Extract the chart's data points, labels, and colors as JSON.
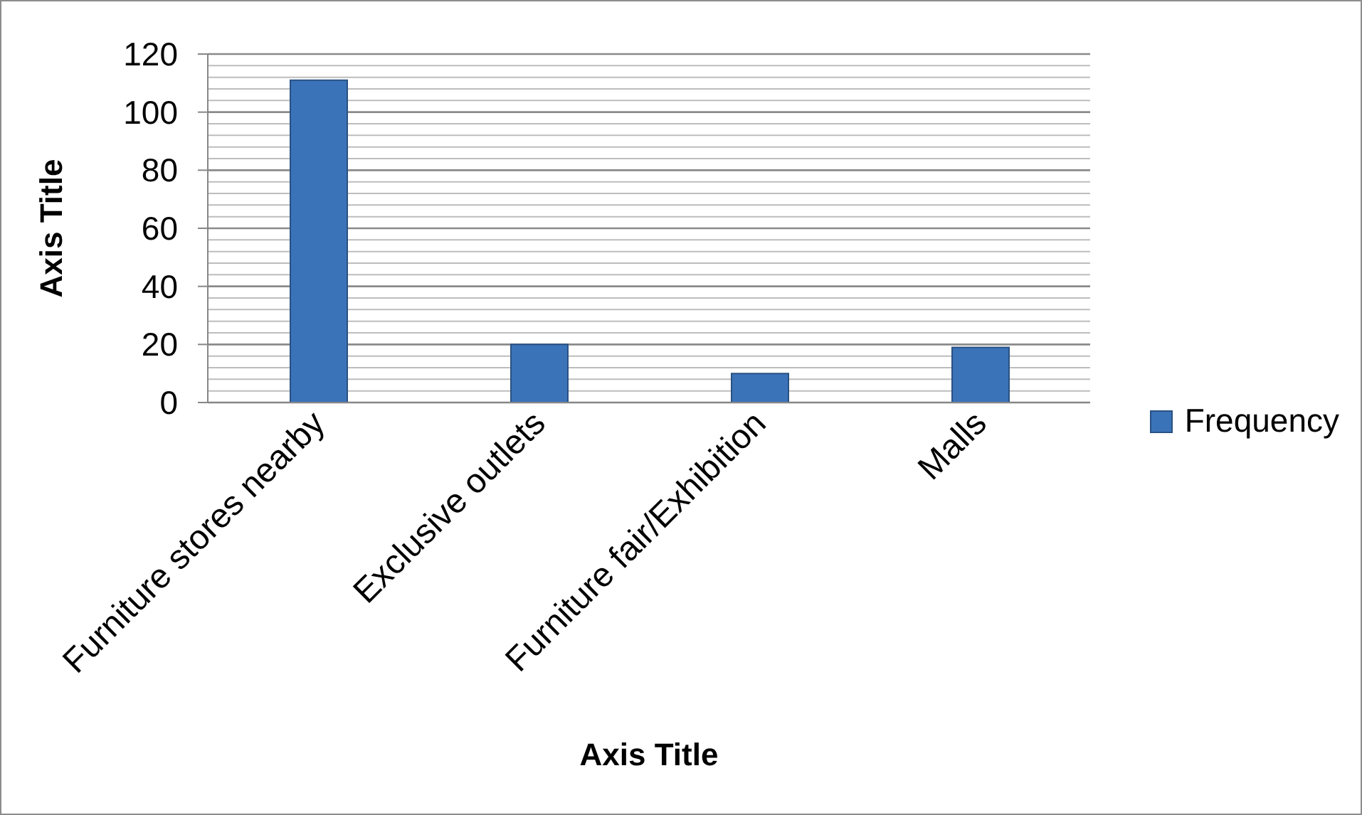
{
  "chart_data": {
    "type": "bar",
    "xlabel": "Axis Title",
    "ylabel": "Axis Title",
    "categories": [
      "Furniture stores nearby",
      "Exclusive outlets",
      "Furniture fair/Exhibition",
      "Malls"
    ],
    "series": [
      {
        "name": "Frequency",
        "color": "#3b73b9",
        "values": [
          111,
          20,
          10,
          19
        ]
      }
    ],
    "ylim": [
      0,
      120
    ],
    "yticks": [
      0,
      {
        "value": 4,
        "label": null
      },
      {
        "value": 8,
        "label": null
      },
      {
        "value": 12,
        "label": null
      },
      {
        "value": 16,
        "label": null
      },
      20,
      {
        "value": 24,
        "label": null
      },
      {
        "value": 28,
        "label": null
      },
      {
        "value": 32,
        "label": null
      },
      {
        "value": 36,
        "label": null
      },
      40,
      {
        "value": 44,
        "label": null
      },
      {
        "value": 48,
        "label": null
      },
      {
        "value": 52,
        "label": null
      },
      {
        "value": 56,
        "label": null
      },
      60,
      {
        "value": 64,
        "label": null
      },
      {
        "value": 68,
        "label": null
      },
      {
        "value": 72,
        "label": null
      },
      {
        "value": 76,
        "label": null
      },
      80,
      {
        "value": 84,
        "label": null
      },
      {
        "value": 88,
        "label": null
      },
      {
        "value": 92,
        "label": null
      },
      {
        "value": 96,
        "label": null
      },
      100,
      {
        "value": 104,
        "label": null
      },
      {
        "value": 108,
        "label": null
      },
      {
        "value": 112,
        "label": null
      },
      {
        "value": 116,
        "label": null
      },
      120
    ],
    "grid": "y",
    "legend": "right"
  }
}
